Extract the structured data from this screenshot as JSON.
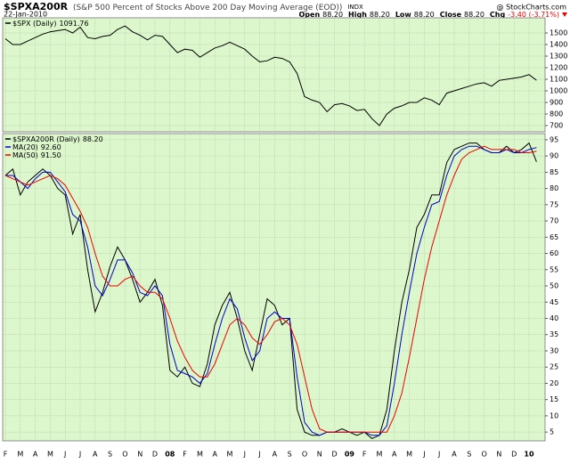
{
  "header": {
    "symbol": "$SPXA200R",
    "description": "(S&P 500 Percent of Stocks Above 200 Day Moving Average (EOD))",
    "exchange": "INDX",
    "source": "@ StockCharts.com",
    "date": "22-Jan-2010",
    "quote": [
      {
        "label": "Open",
        "value": "88.20"
      },
      {
        "label": "High",
        "value": "88.20"
      },
      {
        "label": "Low",
        "value": "88.20"
      },
      {
        "label": "Close",
        "value": "88.20"
      },
      {
        "label": "Chg",
        "value": "-3.40 (-3.71%)"
      }
    ]
  },
  "chart_data": [
    {
      "type": "line",
      "ylim": [
        646,
        1631
      ],
      "yticks": [
        700,
        800,
        900,
        1000,
        1100,
        1200,
        1300,
        1400,
        1500
      ],
      "grid": true,
      "series": [
        {
          "name": "$SPX (Daily)",
          "last_label": "1091.76",
          "color": "#000000",
          "values": [
            1450,
            1400,
            1400,
            1430,
            1460,
            1490,
            1510,
            1520,
            1530,
            1500,
            1550,
            1460,
            1450,
            1470,
            1480,
            1530,
            1560,
            1510,
            1480,
            1440,
            1480,
            1470,
            1400,
            1330,
            1360,
            1350,
            1290,
            1330,
            1370,
            1390,
            1420,
            1390,
            1360,
            1300,
            1250,
            1260,
            1290,
            1280,
            1250,
            1150,
            950,
            920,
            900,
            820,
            880,
            890,
            870,
            830,
            840,
            760,
            700,
            800,
            850,
            870,
            900,
            900,
            940,
            920,
            880,
            980,
            1000,
            1020,
            1040,
            1060,
            1070,
            1040,
            1090,
            1100,
            1110,
            1120,
            1140,
            1091.76
          ]
        }
      ]
    },
    {
      "type": "line",
      "ylim": [
        2.3,
        96.9
      ],
      "yticks": [
        5,
        10,
        15,
        20,
        25,
        30,
        35,
        40,
        45,
        50,
        55,
        60,
        65,
        70,
        75,
        80,
        85,
        90,
        95
      ],
      "grid": true,
      "categories": [
        "F",
        null,
        "M",
        null,
        "A",
        null,
        "M",
        null,
        "J",
        null,
        "J",
        null,
        "A",
        null,
        "S",
        null,
        "O",
        null,
        "N",
        null,
        "D",
        null,
        "08",
        null,
        "F",
        null,
        "M",
        null,
        "A",
        null,
        "M",
        null,
        "J",
        null,
        "J",
        null,
        "A",
        null,
        "S",
        null,
        "O",
        null,
        "N",
        null,
        "D",
        null,
        "09",
        null,
        "F",
        null,
        "M",
        null,
        "A",
        null,
        "M",
        null,
        "J",
        null,
        "J",
        null,
        "A",
        null,
        "S",
        null,
        "O",
        null,
        "N",
        null,
        "D",
        null,
        "10",
        null
      ],
      "series": [
        {
          "name": "$SPXA200R (Daily)",
          "last_label": "88.20",
          "color": "#000000",
          "values": [
            84,
            86,
            78,
            82,
            84,
            86,
            84,
            80,
            78,
            66,
            72,
            55,
            42,
            48,
            56,
            62,
            58,
            52,
            45,
            48,
            52,
            44,
            24,
            22,
            25,
            20,
            19,
            26,
            38,
            44,
            48,
            40,
            30,
            24,
            35,
            46,
            44,
            38,
            40,
            12,
            5,
            4,
            4,
            5,
            5,
            6,
            5,
            4,
            5,
            3,
            4,
            12,
            30,
            45,
            55,
            68,
            72,
            78,
            78,
            88,
            92,
            93,
            94,
            94,
            92,
            91,
            91,
            93,
            91,
            92,
            94,
            88.2
          ]
        },
        {
          "name": "MA(20)",
          "last_label": "92.60",
          "color": "#0000cc",
          "values": [
            84,
            84,
            82,
            80,
            83,
            85,
            85,
            82,
            79,
            72,
            70,
            62,
            50,
            47,
            52,
            58,
            58,
            54,
            48,
            47,
            50,
            47,
            32,
            24,
            23,
            22,
            20,
            23,
            32,
            40,
            46,
            43,
            34,
            27,
            30,
            40,
            42,
            40,
            40,
            22,
            8,
            5,
            4,
            5,
            5,
            5,
            5,
            5,
            5,
            4,
            4,
            7,
            20,
            35,
            48,
            60,
            68,
            75,
            76,
            84,
            90,
            92,
            93,
            93,
            92,
            91,
            91,
            92,
            91,
            91,
            92,
            92.6
          ]
        },
        {
          "name": "MA(50)",
          "last_label": "91.50",
          "color": "#ee0000",
          "values": [
            84,
            83,
            82,
            81,
            82,
            83,
            84,
            83,
            81,
            77,
            73,
            68,
            60,
            53,
            50,
            50,
            52,
            53,
            50,
            48,
            48,
            46,
            40,
            33,
            28,
            24,
            22,
            22,
            26,
            32,
            38,
            40,
            38,
            34,
            32,
            35,
            39,
            40,
            38,
            32,
            22,
            12,
            6,
            5,
            5,
            5,
            5,
            5,
            5,
            5,
            5,
            5,
            10,
            17,
            28,
            40,
            52,
            62,
            70,
            78,
            84,
            89,
            91,
            92,
            93,
            92,
            92,
            92,
            92,
            91,
            91,
            91.5
          ]
        }
      ]
    }
  ]
}
